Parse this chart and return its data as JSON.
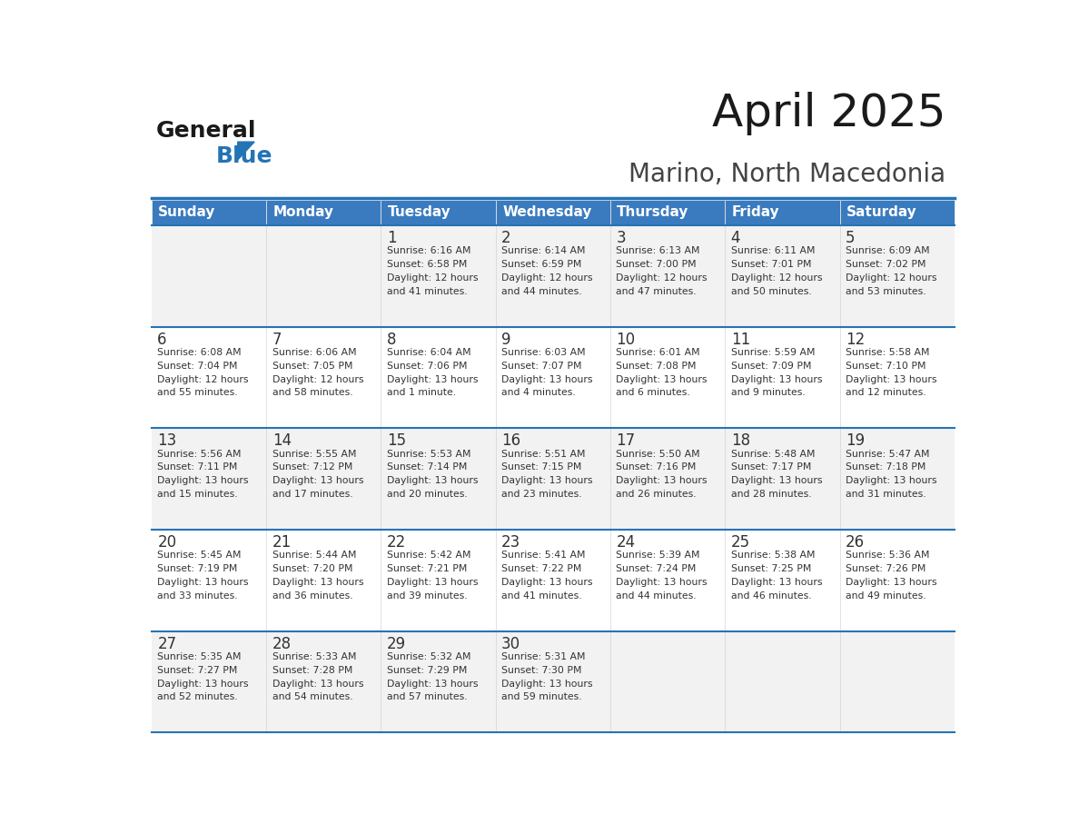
{
  "title": "April 2025",
  "subtitle": "Marino, North Macedonia",
  "header_bg": "#3a7bbf",
  "header_text_color": "#ffffff",
  "cell_bg_odd": "#f2f2f2",
  "cell_bg_even": "#ffffff",
  "day_names": [
    "Sunday",
    "Monday",
    "Tuesday",
    "Wednesday",
    "Thursday",
    "Friday",
    "Saturday"
  ],
  "weeks": [
    [
      {
        "day": "",
        "info": ""
      },
      {
        "day": "",
        "info": ""
      },
      {
        "day": "1",
        "info": "Sunrise: 6:16 AM\nSunset: 6:58 PM\nDaylight: 12 hours\nand 41 minutes."
      },
      {
        "day": "2",
        "info": "Sunrise: 6:14 AM\nSunset: 6:59 PM\nDaylight: 12 hours\nand 44 minutes."
      },
      {
        "day": "3",
        "info": "Sunrise: 6:13 AM\nSunset: 7:00 PM\nDaylight: 12 hours\nand 47 minutes."
      },
      {
        "day": "4",
        "info": "Sunrise: 6:11 AM\nSunset: 7:01 PM\nDaylight: 12 hours\nand 50 minutes."
      },
      {
        "day": "5",
        "info": "Sunrise: 6:09 AM\nSunset: 7:02 PM\nDaylight: 12 hours\nand 53 minutes."
      }
    ],
    [
      {
        "day": "6",
        "info": "Sunrise: 6:08 AM\nSunset: 7:04 PM\nDaylight: 12 hours\nand 55 minutes."
      },
      {
        "day": "7",
        "info": "Sunrise: 6:06 AM\nSunset: 7:05 PM\nDaylight: 12 hours\nand 58 minutes."
      },
      {
        "day": "8",
        "info": "Sunrise: 6:04 AM\nSunset: 7:06 PM\nDaylight: 13 hours\nand 1 minute."
      },
      {
        "day": "9",
        "info": "Sunrise: 6:03 AM\nSunset: 7:07 PM\nDaylight: 13 hours\nand 4 minutes."
      },
      {
        "day": "10",
        "info": "Sunrise: 6:01 AM\nSunset: 7:08 PM\nDaylight: 13 hours\nand 6 minutes."
      },
      {
        "day": "11",
        "info": "Sunrise: 5:59 AM\nSunset: 7:09 PM\nDaylight: 13 hours\nand 9 minutes."
      },
      {
        "day": "12",
        "info": "Sunrise: 5:58 AM\nSunset: 7:10 PM\nDaylight: 13 hours\nand 12 minutes."
      }
    ],
    [
      {
        "day": "13",
        "info": "Sunrise: 5:56 AM\nSunset: 7:11 PM\nDaylight: 13 hours\nand 15 minutes."
      },
      {
        "day": "14",
        "info": "Sunrise: 5:55 AM\nSunset: 7:12 PM\nDaylight: 13 hours\nand 17 minutes."
      },
      {
        "day": "15",
        "info": "Sunrise: 5:53 AM\nSunset: 7:14 PM\nDaylight: 13 hours\nand 20 minutes."
      },
      {
        "day": "16",
        "info": "Sunrise: 5:51 AM\nSunset: 7:15 PM\nDaylight: 13 hours\nand 23 minutes."
      },
      {
        "day": "17",
        "info": "Sunrise: 5:50 AM\nSunset: 7:16 PM\nDaylight: 13 hours\nand 26 minutes."
      },
      {
        "day": "18",
        "info": "Sunrise: 5:48 AM\nSunset: 7:17 PM\nDaylight: 13 hours\nand 28 minutes."
      },
      {
        "day": "19",
        "info": "Sunrise: 5:47 AM\nSunset: 7:18 PM\nDaylight: 13 hours\nand 31 minutes."
      }
    ],
    [
      {
        "day": "20",
        "info": "Sunrise: 5:45 AM\nSunset: 7:19 PM\nDaylight: 13 hours\nand 33 minutes."
      },
      {
        "day": "21",
        "info": "Sunrise: 5:44 AM\nSunset: 7:20 PM\nDaylight: 13 hours\nand 36 minutes."
      },
      {
        "day": "22",
        "info": "Sunrise: 5:42 AM\nSunset: 7:21 PM\nDaylight: 13 hours\nand 39 minutes."
      },
      {
        "day": "23",
        "info": "Sunrise: 5:41 AM\nSunset: 7:22 PM\nDaylight: 13 hours\nand 41 minutes."
      },
      {
        "day": "24",
        "info": "Sunrise: 5:39 AM\nSunset: 7:24 PM\nDaylight: 13 hours\nand 44 minutes."
      },
      {
        "day": "25",
        "info": "Sunrise: 5:38 AM\nSunset: 7:25 PM\nDaylight: 13 hours\nand 46 minutes."
      },
      {
        "day": "26",
        "info": "Sunrise: 5:36 AM\nSunset: 7:26 PM\nDaylight: 13 hours\nand 49 minutes."
      }
    ],
    [
      {
        "day": "27",
        "info": "Sunrise: 5:35 AM\nSunset: 7:27 PM\nDaylight: 13 hours\nand 52 minutes."
      },
      {
        "day": "28",
        "info": "Sunrise: 5:33 AM\nSunset: 7:28 PM\nDaylight: 13 hours\nand 54 minutes."
      },
      {
        "day": "29",
        "info": "Sunrise: 5:32 AM\nSunset: 7:29 PM\nDaylight: 13 hours\nand 57 minutes."
      },
      {
        "day": "30",
        "info": "Sunrise: 5:31 AM\nSunset: 7:30 PM\nDaylight: 13 hours\nand 59 minutes."
      },
      {
        "day": "",
        "info": ""
      },
      {
        "day": "",
        "info": ""
      },
      {
        "day": "",
        "info": ""
      }
    ]
  ],
  "logo_text1": "General",
  "logo_text2": "Blue",
  "logo_text1_color": "#1a1a1a",
  "logo_text2_color": "#2474b5",
  "logo_triangle_color": "#2474b5",
  "header_line_color": "#2474b5",
  "divider_color": "#2474b5",
  "cell_text_color": "#333333",
  "day_num_color": "#333333"
}
